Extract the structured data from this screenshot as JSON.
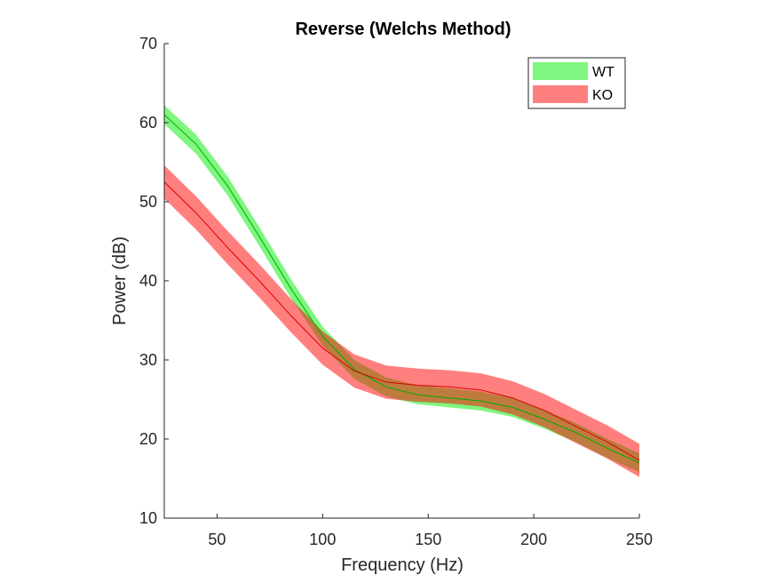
{
  "chart_data": {
    "type": "area",
    "title": "Reverse (Welchs Method)",
    "xlabel": "Frequency (Hz)",
    "ylabel": "Power (dB)",
    "xlim": [
      25,
      250
    ],
    "ylim": [
      10,
      70
    ],
    "xticks": [
      50,
      100,
      150,
      200,
      250
    ],
    "yticks": [
      10,
      20,
      30,
      40,
      50,
      60,
      70
    ],
    "grid": false,
    "legend_position": "top-right",
    "x": [
      25,
      40,
      55,
      70,
      85,
      100,
      115,
      130,
      145,
      160,
      175,
      190,
      205,
      220,
      235,
      250
    ],
    "series": [
      {
        "name": "WT",
        "band_color": "#00ee00",
        "line_color": "#00aa00",
        "mean": [
          61.0,
          57.3,
          52.0,
          45.6,
          39.0,
          33.0,
          28.8,
          26.6,
          25.6,
          25.2,
          24.8,
          24.0,
          22.5,
          20.8,
          18.8,
          17.0
        ],
        "lower": [
          59.8,
          56.1,
          50.8,
          44.4,
          37.8,
          31.8,
          27.6,
          25.4,
          24.4,
          24.0,
          23.6,
          22.8,
          21.3,
          19.6,
          17.6,
          15.8
        ],
        "upper": [
          62.2,
          58.5,
          53.2,
          46.8,
          40.2,
          34.2,
          30.0,
          27.8,
          26.8,
          26.4,
          26.0,
          25.2,
          23.7,
          22.0,
          20.0,
          18.2
        ]
      },
      {
        "name": "KO",
        "band_color": "#ff0000",
        "line_color": "#dd0000",
        "mean": [
          52.5,
          48.6,
          44.2,
          40.0,
          35.6,
          31.5,
          28.6,
          27.2,
          26.8,
          26.6,
          26.2,
          25.2,
          23.6,
          21.6,
          19.6,
          17.3
        ],
        "lower": [
          50.4,
          46.5,
          42.1,
          37.9,
          33.5,
          29.4,
          26.5,
          25.1,
          24.7,
          24.5,
          24.1,
          23.1,
          21.5,
          19.5,
          17.5,
          15.2
        ],
        "upper": [
          54.6,
          50.7,
          46.3,
          42.1,
          37.7,
          33.6,
          30.7,
          29.3,
          28.9,
          28.7,
          28.3,
          27.3,
          25.7,
          23.7,
          21.7,
          19.4
        ]
      }
    ]
  }
}
